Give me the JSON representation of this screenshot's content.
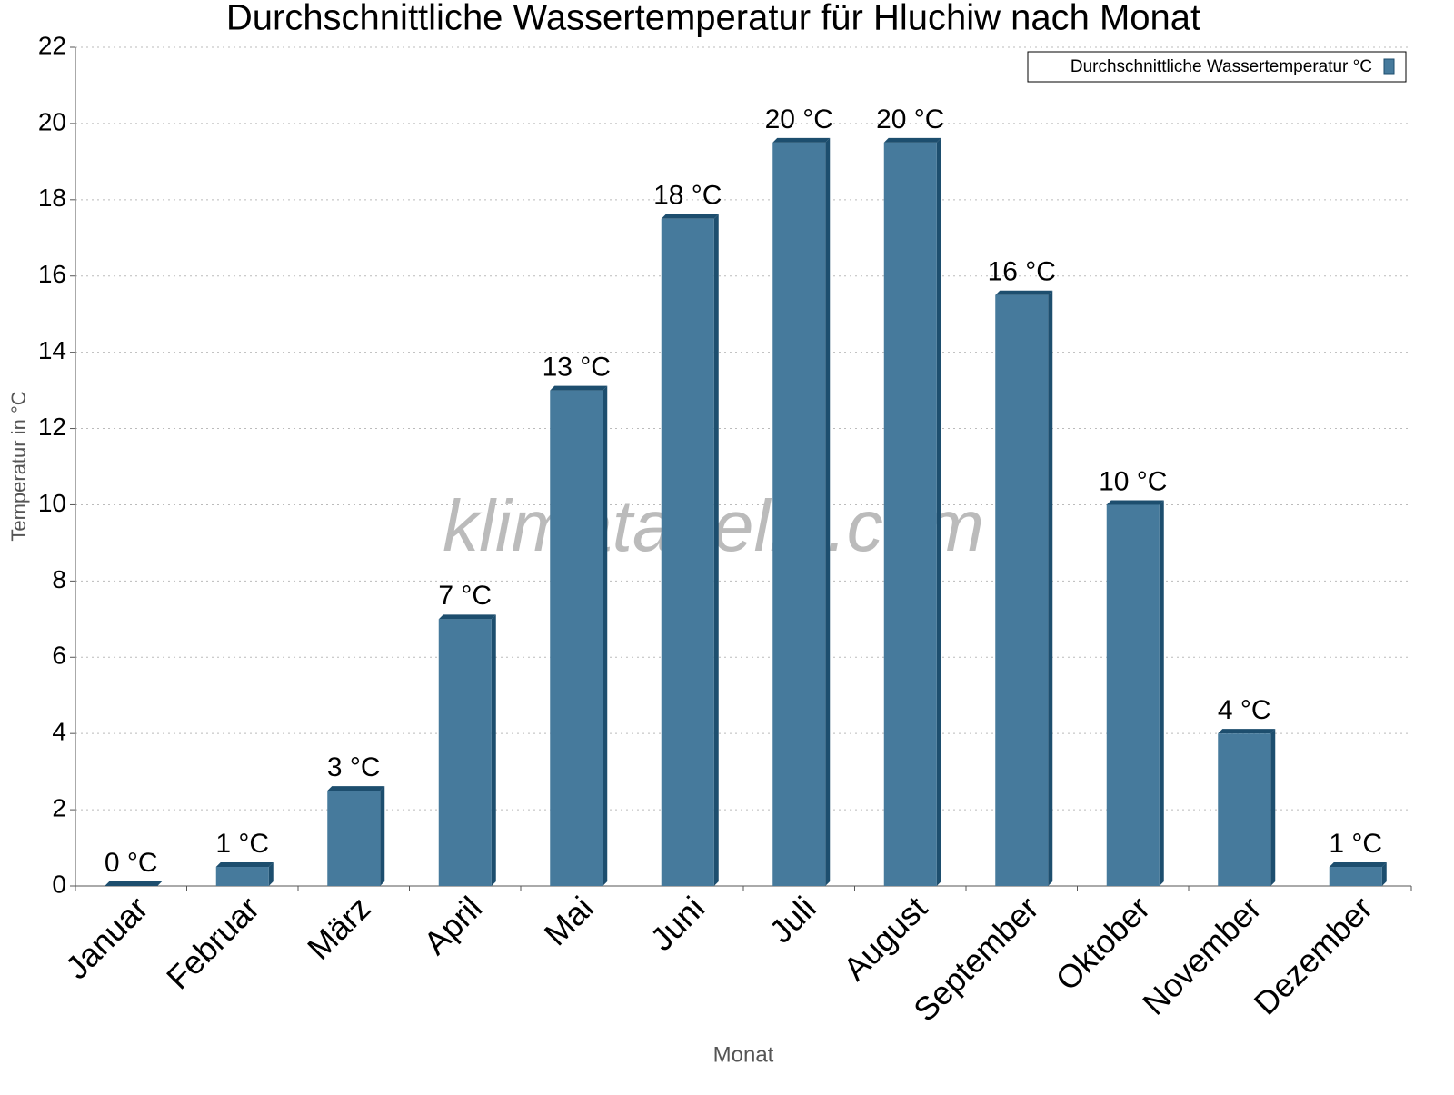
{
  "chart_data": {
    "type": "bar",
    "title": "Durchschnittliche Wassertemperatur für Hluchiw nach Monat",
    "x_label": "Monat",
    "y_label": "Temperatur in °C",
    "watermark": "klimatabelle.com",
    "categories": [
      "Januar",
      "Februar",
      "März",
      "April",
      "Mai",
      "Juni",
      "Juli",
      "August",
      "September",
      "Oktober",
      "November",
      "Dezember"
    ],
    "series": [
      {
        "name": "Durchschnittliche Wassertemperatur °C",
        "color": "#467a9c",
        "values": [
          0,
          0.5,
          2.5,
          7,
          13,
          17.5,
          19.5,
          19.5,
          15.5,
          10,
          4,
          0.5
        ],
        "value_labels": [
          "0 °C",
          "1 °C",
          "3 °C",
          "7 °C",
          "13 °C",
          "18 °C",
          "20 °C",
          "20 °C",
          "16 °C",
          "10 °C",
          "4 °C",
          "1 °C"
        ]
      }
    ],
    "ylim": [
      0,
      22
    ],
    "yticks": [
      0,
      2,
      4,
      6,
      8,
      10,
      12,
      14,
      16,
      18,
      20,
      22
    ],
    "grid": true,
    "legend": "top-right"
  }
}
